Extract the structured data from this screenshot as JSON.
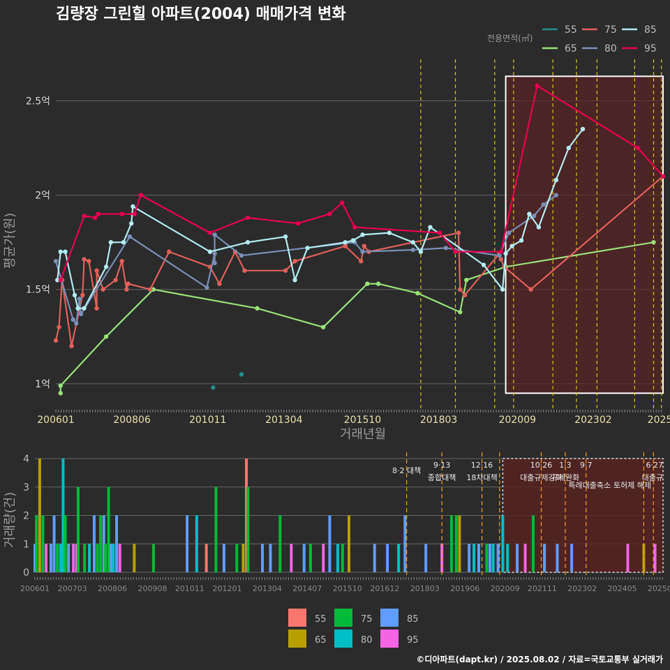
{
  "title": "김량장 그린힐 아파트(2004) 매매가격 변화",
  "credit": "©디아파트(dapt.kr) / 2025.08.02 / 자료=국토교통부 실거래가",
  "colors": {
    "background": "#2b2b2c",
    "grid": "#666666",
    "event_line": "#d4c020",
    "event_line_bottom": "#f0a020",
    "box": "#ffffff",
    "box_fill": "#5a2222"
  },
  "chart_data": [
    {
      "type": "line",
      "title": "김량장 그린힐 아파트(2004) 매매가격 변화",
      "xlabel": "거래년월",
      "ylabel": "평균가(원)",
      "x_range": [
        2006.0,
        2025.3
      ],
      "ylim": [
        0.87,
        2.72
      ],
      "y_ticks": [
        1,
        1.5,
        2,
        2.5
      ],
      "y_tick_labels": [
        "1억",
        "1.5억",
        "2억",
        "2.5억"
      ],
      "x_ticks": [
        2006.0,
        2008.42,
        2010.83,
        2013.25,
        2015.75,
        2018.17,
        2020.67,
        2023.08,
        2025.2
      ],
      "x_tick_labels": [
        "200601",
        "200806",
        "201011",
        "201304",
        "201510",
        "201803",
        "202009",
        "202302",
        "2025"
      ],
      "legend_title": "전용면적(㎡)",
      "legend_labels": [
        "55",
        "75",
        "85",
        "65",
        "80",
        "95"
      ],
      "event_lines": [
        2017.6,
        2018.7,
        2019.95,
        2020.55,
        2021.8,
        2022.55,
        2023.2,
        2024.4,
        2025.0,
        2025.25
      ],
      "highlight_box": {
        "x0": 2020.3,
        "x1": 2025.3,
        "y0": 0.95,
        "y1": 2.63
      },
      "series": [
        {
          "name": "55",
          "color": "#2a8a8a",
          "points": [
            [
              2011.0,
              0.98
            ],
            [
              2011.9,
              1.05
            ]
          ]
        },
        {
          "name": "65",
          "color": "#9be07a",
          "points": [
            [
              2006.15,
              0.95
            ],
            [
              2006.15,
              0.99
            ],
            [
              2007.6,
              1.25
            ],
            [
              2009.1,
              1.5
            ],
            [
              2012.4,
              1.4
            ],
            [
              2014.5,
              1.3
            ],
            [
              2015.9,
              1.53
            ],
            [
              2016.25,
              1.53
            ],
            [
              2017.5,
              1.48
            ],
            [
              2018.85,
              1.38
            ],
            [
              2019.05,
              1.55
            ],
            [
              2020.3,
              1.62
            ],
            [
              2025.0,
              1.75
            ]
          ]
        },
        {
          "name": "75",
          "color": "#e0605c",
          "points": [
            [
              2006.0,
              1.23
            ],
            [
              2006.1,
              1.3
            ],
            [
              2006.2,
              1.55
            ],
            [
              2006.5,
              1.2
            ],
            [
              2006.85,
              1.47
            ],
            [
              2006.9,
              1.66
            ],
            [
              2007.05,
              1.65
            ],
            [
              2007.3,
              1.4
            ],
            [
              2007.3,
              1.6
            ],
            [
              2007.5,
              1.5
            ],
            [
              2007.9,
              1.55
            ],
            [
              2008.1,
              1.65
            ],
            [
              2008.25,
              1.5
            ],
            [
              2008.3,
              1.53
            ],
            [
              2009.0,
              1.5
            ],
            [
              2009.6,
              1.7
            ],
            [
              2010.9,
              1.62
            ],
            [
              2011.2,
              1.53
            ],
            [
              2011.7,
              1.7
            ],
            [
              2012.0,
              1.6
            ],
            [
              2013.3,
              1.6
            ],
            [
              2013.6,
              1.65
            ],
            [
              2015.2,
              1.73
            ],
            [
              2015.7,
              1.65
            ],
            [
              2015.8,
              1.73
            ],
            [
              2015.95,
              1.7
            ],
            [
              2018.8,
              1.8
            ],
            [
              2018.85,
              1.5
            ],
            [
              2019.0,
              1.47
            ],
            [
              2020.1,
              1.69
            ],
            [
              2020.15,
              1.66
            ],
            [
              2020.25,
              1.62
            ],
            [
              2021.1,
              1.5
            ],
            [
              2025.3,
              2.1
            ]
          ]
        },
        {
          "name": "80",
          "color": "#7a8fb4",
          "points": [
            [
              2006.0,
              1.65
            ],
            [
              2006.55,
              1.34
            ],
            [
              2006.65,
              1.32
            ],
            [
              2006.75,
              1.45
            ],
            [
              2006.8,
              1.37
            ],
            [
              2008.35,
              1.78
            ],
            [
              2010.8,
              1.51
            ],
            [
              2011.05,
              1.69
            ],
            [
              2011.05,
              1.64
            ],
            [
              2011.05,
              1.79
            ],
            [
              2011.9,
              1.68
            ],
            [
              2015.5,
              1.75
            ],
            [
              2015.75,
              1.7
            ],
            [
              2017.35,
              1.71
            ],
            [
              2018.4,
              1.72
            ],
            [
              2020.1,
              1.68
            ],
            [
              2020.4,
              1.8
            ],
            [
              2021.2,
              1.89
            ],
            [
              2021.5,
              1.95
            ],
            [
              2021.9,
              2.0
            ]
          ]
        },
        {
          "name": "85",
          "color": "#b4ecf0",
          "points": [
            [
              2006.05,
              1.55
            ],
            [
              2006.15,
              1.7
            ],
            [
              2006.3,
              1.7
            ],
            [
              2006.6,
              1.47
            ],
            [
              2006.7,
              1.4
            ],
            [
              2006.9,
              1.4
            ],
            [
              2007.6,
              1.62
            ],
            [
              2007.75,
              1.75
            ],
            [
              2008.15,
              1.75
            ],
            [
              2008.4,
              1.85
            ],
            [
              2008.45,
              1.94
            ],
            [
              2010.9,
              1.7
            ],
            [
              2012.1,
              1.75
            ],
            [
              2013.3,
              1.78
            ],
            [
              2013.6,
              1.55
            ],
            [
              2014.0,
              1.72
            ],
            [
              2015.2,
              1.75
            ],
            [
              2015.45,
              1.76
            ],
            [
              2015.75,
              1.79
            ],
            [
              2016.6,
              1.8
            ],
            [
              2017.35,
              1.75
            ],
            [
              2017.6,
              1.7
            ],
            [
              2017.9,
              1.83
            ],
            [
              2019.6,
              1.63
            ],
            [
              2020.2,
              1.5
            ],
            [
              2020.3,
              1.69
            ],
            [
              2020.5,
              1.73
            ],
            [
              2020.8,
              1.76
            ],
            [
              2021.05,
              1.9
            ],
            [
              2021.35,
              1.83
            ],
            [
              2021.9,
              2.08
            ],
            [
              2022.3,
              2.25
            ],
            [
              2022.75,
              2.35
            ]
          ]
        },
        {
          "name": "95",
          "color": "#e8004f",
          "points": [
            [
              2006.15,
              1.55
            ],
            [
              2006.9,
              1.89
            ],
            [
              2007.25,
              1.88
            ],
            [
              2007.35,
              1.9
            ],
            [
              2008.1,
              1.9
            ],
            [
              2008.5,
              1.9
            ],
            [
              2008.7,
              2.0
            ],
            [
              2010.9,
              1.8
            ],
            [
              2012.1,
              1.88
            ],
            [
              2013.7,
              1.85
            ],
            [
              2014.7,
              1.9
            ],
            [
              2015.1,
              1.96
            ],
            [
              2015.5,
              1.83
            ],
            [
              2018.2,
              1.8
            ],
            [
              2018.7,
              1.7
            ],
            [
              2020.15,
              1.7
            ],
            [
              2021.3,
              2.58
            ],
            [
              2024.5,
              2.25
            ],
            [
              2025.3,
              2.1
            ]
          ]
        }
      ]
    },
    {
      "type": "bar",
      "title": "",
      "xlabel": "",
      "ylabel": "거래량(건)",
      "x_range": [
        2006.0,
        2025.6
      ],
      "ylim": [
        0,
        4
      ],
      "y_ticks": [
        0,
        1,
        2,
        3,
        4
      ],
      "y_tick_labels": [
        "0",
        "1",
        "2",
        "3",
        "4"
      ],
      "x_ticks": [
        2006.0,
        2007.17,
        2008.42,
        2009.67,
        2010.83,
        2012.0,
        2013.25,
        2014.5,
        2015.75,
        2016.92,
        2018.17,
        2019.42,
        2020.67,
        2021.83,
        2023.08,
        2024.33,
        2025.5
      ],
      "x_tick_labels": [
        "200601",
        "200703",
        "200806",
        "200908",
        "201011",
        "201201",
        "201304",
        "201407",
        "201510",
        "201612",
        "201803",
        "201906",
        "202009",
        "202111",
        "202302",
        "202405",
        "20250"
      ],
      "legend_labels": [
        "55",
        "65",
        "75",
        "80",
        "85",
        "95"
      ],
      "legend_colors": [
        "#f8766d",
        "#b79f00",
        "#00ba38",
        "#00bfc4",
        "#619cff",
        "#f564e3"
      ],
      "highlight_box": {
        "x0": 2020.6,
        "x1": 2025.6,
        "y0": 0,
        "y1": 4
      },
      "events": [
        {
          "x": 2017.6,
          "date": "",
          "label": "8·2 대책"
        },
        {
          "x": 2018.7,
          "date": "9·13",
          "label": "종합대책"
        },
        {
          "x": 2019.95,
          "date": "12·16",
          "label": "18차대책"
        },
        {
          "x": 2020.5,
          "date": "",
          "label": ""
        },
        {
          "x": 2021.8,
          "date": "10·26",
          "label": "대출규제강화"
        },
        {
          "x": 2022.55,
          "date": "1·3",
          "label": "규제완화"
        },
        {
          "x": 2023.2,
          "date": "9·7",
          "label": "특례대출축소"
        },
        {
          "x": 2025.0,
          "date": "",
          "label": "토허제 해제"
        },
        {
          "x": 2025.3,
          "date": "6·27",
          "label": "대출규"
        }
      ],
      "bars": [
        {
          "x": 2006.0,
          "group": "85",
          "value": 1
        },
        {
          "x": 2006.05,
          "group": "75",
          "value": 2
        },
        {
          "x": 2006.15,
          "group": "65",
          "value": 4
        },
        {
          "x": 2006.25,
          "group": "75",
          "value": 2
        },
        {
          "x": 2006.35,
          "group": "95",
          "value": 1
        },
        {
          "x": 2006.5,
          "group": "85",
          "value": 1
        },
        {
          "x": 2006.6,
          "group": "85",
          "value": 2
        },
        {
          "x": 2006.7,
          "group": "75",
          "value": 1
        },
        {
          "x": 2006.8,
          "group": "80",
          "value": 1
        },
        {
          "x": 2006.88,
          "group": "80",
          "value": 4
        },
        {
          "x": 2006.95,
          "group": "75",
          "value": 2
        },
        {
          "x": 2007.05,
          "group": "85",
          "value": 1
        },
        {
          "x": 2007.2,
          "group": "95",
          "value": 1
        },
        {
          "x": 2007.3,
          "group": "95",
          "value": 1
        },
        {
          "x": 2007.35,
          "group": "75",
          "value": 3
        },
        {
          "x": 2007.55,
          "group": "75",
          "value": 1
        },
        {
          "x": 2007.7,
          "group": "80",
          "value": 1
        },
        {
          "x": 2007.85,
          "group": "85",
          "value": 2
        },
        {
          "x": 2007.95,
          "group": "75",
          "value": 1
        },
        {
          "x": 2008.05,
          "group": "75",
          "value": 2
        },
        {
          "x": 2008.15,
          "group": "85",
          "value": 2
        },
        {
          "x": 2008.2,
          "group": "75",
          "value": 1
        },
        {
          "x": 2008.3,
          "group": "75",
          "value": 3
        },
        {
          "x": 2008.38,
          "group": "85",
          "value": 1
        },
        {
          "x": 2008.45,
          "group": "80",
          "value": 1
        },
        {
          "x": 2008.55,
          "group": "85",
          "value": 2
        },
        {
          "x": 2008.65,
          "group": "95",
          "value": 1
        },
        {
          "x": 2009.1,
          "group": "65",
          "value": 1
        },
        {
          "x": 2009.7,
          "group": "75",
          "value": 1
        },
        {
          "x": 2010.75,
          "group": "85",
          "value": 2
        },
        {
          "x": 2011.05,
          "group": "80",
          "value": 2
        },
        {
          "x": 2011.35,
          "group": "55",
          "value": 1
        },
        {
          "x": 2011.65,
          "group": "75",
          "value": 3
        },
        {
          "x": 2011.9,
          "group": "85",
          "value": 1
        },
        {
          "x": 2012.3,
          "group": "75",
          "value": 1
        },
        {
          "x": 2012.5,
          "group": "65",
          "value": 1
        },
        {
          "x": 2012.6,
          "group": "55",
          "value": 4
        },
        {
          "x": 2012.65,
          "group": "75",
          "value": 3
        },
        {
          "x": 2013.1,
          "group": "85",
          "value": 1
        },
        {
          "x": 2013.35,
          "group": "85",
          "value": 1
        },
        {
          "x": 2013.65,
          "group": "75",
          "value": 2
        },
        {
          "x": 2014.0,
          "group": "95",
          "value": 1
        },
        {
          "x": 2014.4,
          "group": "85",
          "value": 1
        },
        {
          "x": 2014.6,
          "group": "75",
          "value": 1
        },
        {
          "x": 2015.0,
          "group": "95",
          "value": 1
        },
        {
          "x": 2015.2,
          "group": "85",
          "value": 2
        },
        {
          "x": 2015.45,
          "group": "80",
          "value": 1
        },
        {
          "x": 2015.6,
          "group": "75",
          "value": 1
        },
        {
          "x": 2015.8,
          "group": "65",
          "value": 2
        },
        {
          "x": 2016.6,
          "group": "85",
          "value": 1
        },
        {
          "x": 2017.0,
          "group": "85",
          "value": 1
        },
        {
          "x": 2017.35,
          "group": "80",
          "value": 1
        },
        {
          "x": 2017.55,
          "group": "85",
          "value": 2
        },
        {
          "x": 2018.2,
          "group": "85",
          "value": 1
        },
        {
          "x": 2018.7,
          "group": "95",
          "value": 1
        },
        {
          "x": 2019.0,
          "group": "75",
          "value": 2
        },
        {
          "x": 2019.15,
          "group": "75",
          "value": 2
        },
        {
          "x": 2019.25,
          "group": "65",
          "value": 2
        },
        {
          "x": 2019.55,
          "group": "85",
          "value": 1
        },
        {
          "x": 2019.7,
          "group": "80",
          "value": 1
        },
        {
          "x": 2019.85,
          "group": "85",
          "value": 1
        },
        {
          "x": 2020.1,
          "group": "75",
          "value": 1
        },
        {
          "x": 2020.2,
          "group": "85",
          "value": 1
        },
        {
          "x": 2020.3,
          "group": "80",
          "value": 1
        },
        {
          "x": 2020.45,
          "group": "85",
          "value": 1
        },
        {
          "x": 2020.6,
          "group": "80",
          "value": 2
        },
        {
          "x": 2020.75,
          "group": "80",
          "value": 1
        },
        {
          "x": 2021.05,
          "group": "85",
          "value": 1
        },
        {
          "x": 2021.3,
          "group": "95",
          "value": 1
        },
        {
          "x": 2021.55,
          "group": "75",
          "value": 2
        },
        {
          "x": 2021.9,
          "group": "85",
          "value": 1
        },
        {
          "x": 2022.3,
          "group": "85",
          "value": 1
        },
        {
          "x": 2022.75,
          "group": "85",
          "value": 1
        },
        {
          "x": 2024.5,
          "group": "95",
          "value": 1
        },
        {
          "x": 2025.0,
          "group": "65",
          "value": 1
        },
        {
          "x": 2025.35,
          "group": "95",
          "value": 1
        }
      ]
    }
  ]
}
